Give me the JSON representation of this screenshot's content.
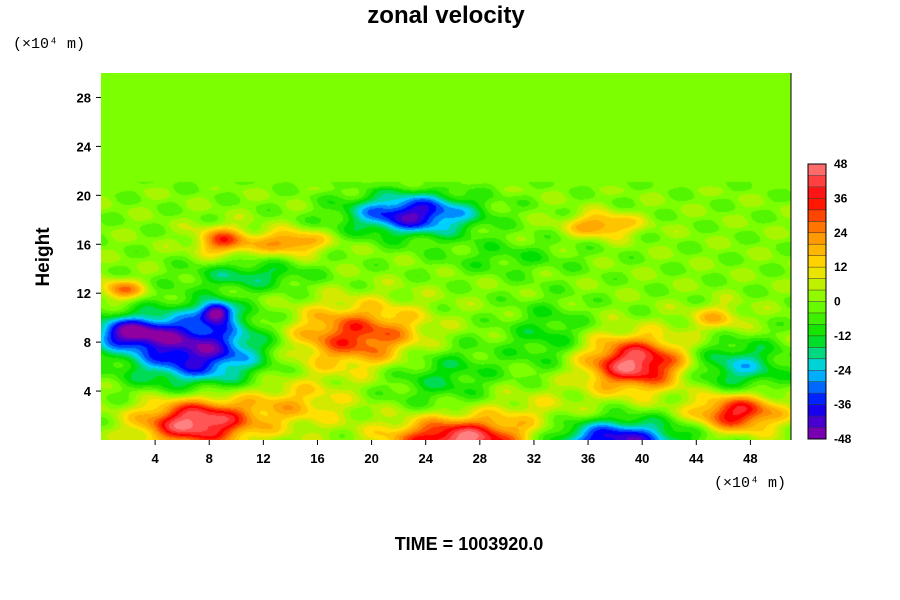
{
  "chart_data": {
    "type": "heatmap",
    "title": "zonal velocity",
    "ylabel": "Height",
    "xlabel": "",
    "x_unit": "(×10⁴ m)",
    "y_unit": "(×10⁴ m)",
    "xlim": [
      0,
      51
    ],
    "ylim": [
      0,
      30
    ],
    "x_ticks": [
      4,
      8,
      12,
      16,
      20,
      24,
      28,
      32,
      36,
      40,
      44,
      48
    ],
    "y_ticks": [
      4,
      8,
      12,
      16,
      20,
      24,
      28
    ],
    "colorbar": {
      "min": -48,
      "max": 48,
      "step": 4,
      "tick_labels": [
        48,
        36,
        24,
        12,
        0,
        -12,
        -24,
        -36,
        -48
      ],
      "colors": [
        "#ff8080",
        "#ff0000",
        "#ff8c00",
        "#ffe000",
        "#7cff00",
        "#00e000",
        "#00d0ff",
        "#0000ff",
        "#9000a0"
      ]
    },
    "background_value": 0,
    "upper_layer_value": -2,
    "tropopause_height": 20.5,
    "features": [
      {
        "x": 7,
        "y": 1.5,
        "sx": 2.8,
        "sy": 1.4,
        "value": 50
      },
      {
        "x": 26.5,
        "y": 0.0,
        "sx": 3.5,
        "sy": 1.3,
        "value": 48
      },
      {
        "x": 39.5,
        "y": 6.3,
        "sx": 2.6,
        "sy": 1.5,
        "value": 48
      },
      {
        "x": 47,
        "y": 2.3,
        "sx": 2.2,
        "sy": 1.1,
        "value": 40
      },
      {
        "x": 19,
        "y": 8.5,
        "sx": 3.5,
        "sy": 1.8,
        "value": 34
      },
      {
        "x": 9,
        "y": 16.3,
        "sx": 1.4,
        "sy": 0.8,
        "value": 30
      },
      {
        "x": 14,
        "y": 16.2,
        "sx": 1.8,
        "sy": 0.7,
        "value": 26
      },
      {
        "x": 1.5,
        "y": 12.3,
        "sx": 1.2,
        "sy": 0.6,
        "value": 26
      },
      {
        "x": 37,
        "y": 17.6,
        "sx": 1.8,
        "sy": 0.7,
        "value": 24
      },
      {
        "x": 45.5,
        "y": 10.0,
        "sx": 1.5,
        "sy": 0.8,
        "value": 16
      },
      {
        "x": 7,
        "y": 7.5,
        "sx": 3.5,
        "sy": 2.2,
        "value": -44
      },
      {
        "x": 2,
        "y": 8.8,
        "sx": 2.0,
        "sy": 0.9,
        "value": -36
      },
      {
        "x": 8.5,
        "y": 10.5,
        "sx": 0.8,
        "sy": 0.6,
        "value": -40
      },
      {
        "x": 23,
        "y": 18.5,
        "sx": 3.2,
        "sy": 1.2,
        "value": -42
      },
      {
        "x": 38,
        "y": 0.0,
        "sx": 3.5,
        "sy": 1.2,
        "value": -42
      },
      {
        "x": 47,
        "y": 6.0,
        "sx": 2.5,
        "sy": 1.5,
        "value": -22
      },
      {
        "x": 25,
        "y": 5.5,
        "sx": 3.0,
        "sy": 2.0,
        "value": -14
      },
      {
        "x": 33,
        "y": 8.5,
        "sx": 2.0,
        "sy": 2.0,
        "value": -12
      },
      {
        "x": 14,
        "y": 3.0,
        "sx": 3.0,
        "sy": 1.5,
        "value": 16
      },
      {
        "x": 32,
        "y": 2.5,
        "sx": 3.0,
        "sy": 1.5,
        "value": 8
      },
      {
        "x": 11,
        "y": 13.5,
        "sx": 3.0,
        "sy": 0.8,
        "value": -16
      },
      {
        "x": 30,
        "y": 15.0,
        "sx": 3.5,
        "sy": 1.0,
        "value": -8
      }
    ],
    "footer": "TIME = 1003920.0"
  }
}
